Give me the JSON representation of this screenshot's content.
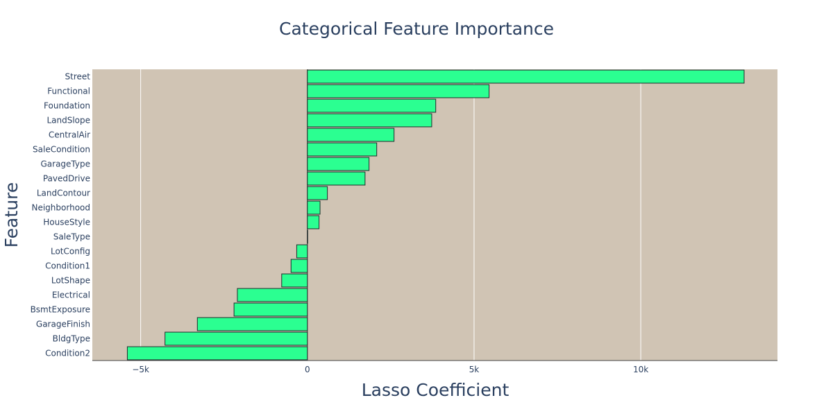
{
  "chart_data": {
    "type": "bar",
    "orientation": "horizontal",
    "title": "Categorical Feature Importance",
    "xlabel": "Lasso Coefficient",
    "ylabel": "Feature",
    "categories": [
      "Street",
      "Functional",
      "Foundation",
      "LandSlope",
      "CentralAir",
      "SaleCondition",
      "GarageType",
      "PavedDrive",
      "LandContour",
      "Neighborhood",
      "HouseStyle",
      "SaleType",
      "LotConfig",
      "Condition1",
      "LotShape",
      "Electrical",
      "BsmtExposure",
      "GarageFinish",
      "BldgType",
      "Condition2"
    ],
    "values": [
      13100,
      5450,
      3850,
      3730,
      2600,
      2080,
      1850,
      1730,
      600,
      380,
      350,
      0,
      -320,
      -490,
      -770,
      -2100,
      -2200,
      -3300,
      -4270,
      -5400
    ],
    "xlim": [
      -6450,
      14100
    ],
    "xticks": [
      -5000,
      0,
      5000,
      10000
    ],
    "xtick_labels": [
      "−5k",
      "0",
      "5k",
      "10k"
    ],
    "grid": true,
    "colors": {
      "bar": "#2bff91",
      "bar_border": "#1f2a2a",
      "plot_bg": "#d0c4b4",
      "grid": "#ffffff",
      "text": "#2a3f5f"
    }
  }
}
